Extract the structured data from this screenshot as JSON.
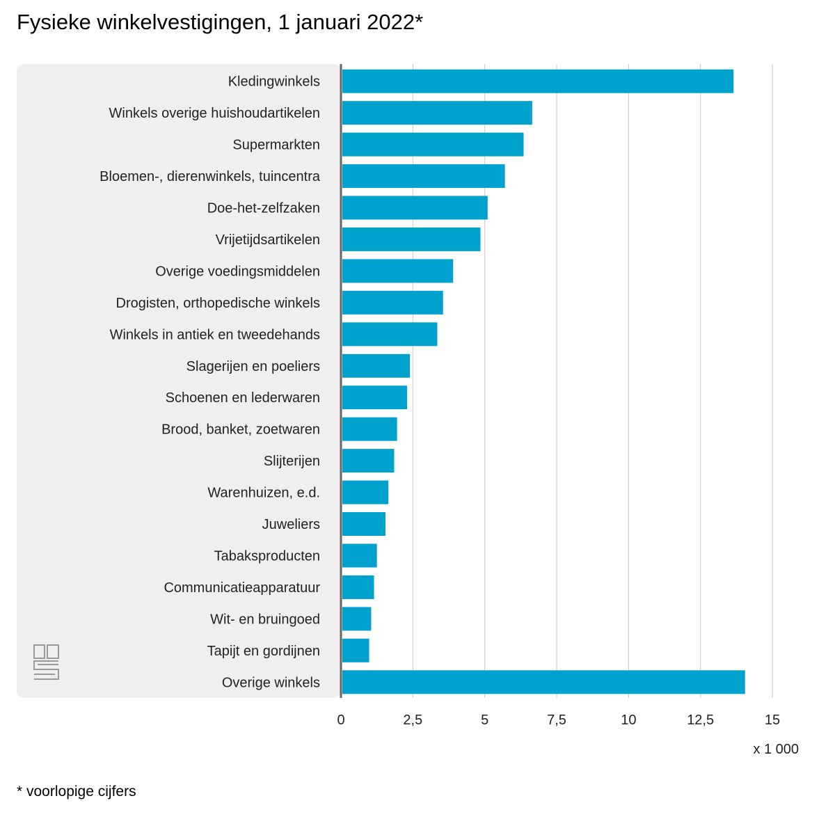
{
  "chart_data": {
    "type": "bar",
    "orientation": "horizontal",
    "title": "Fysieke winkelvestigingen, 1 januari 2022*",
    "unit_label": "x 1 000",
    "footnote": "* voorlopige cijfers",
    "xlim": [
      0,
      15
    ],
    "xticks": [
      0,
      2.5,
      5,
      7.5,
      10,
      12.5,
      15
    ],
    "xtick_labels": [
      "0",
      "2,5",
      "5",
      "7,5",
      "10",
      "12,5",
      "15"
    ],
    "categories": [
      "Kledingwinkels",
      "Winkels overige huishoudartikelen",
      "Supermarkten",
      "Bloemen-, dierenwinkels, tuincentra",
      "Doe-het-zelfzaken",
      "Vrijetijdsartikelen",
      "Overige voedingsmiddelen",
      "Drogisten, orthopedische winkels",
      "Winkels in antiek en tweedehands",
      "Slagerijen en poeliers",
      "Schoenen en lederwaren",
      "Brood, banket, zoetwaren",
      "Slijterijen",
      "Warenhuizen, e.d.",
      "Juweliers",
      "Tabaksproducten",
      "Communicatieapparatuur",
      "Wit- en bruingoed",
      "Tapijt en gordijnen",
      "Overige winkels"
    ],
    "values": [
      13.65,
      6.65,
      6.35,
      5.7,
      5.1,
      4.85,
      3.9,
      3.55,
      3.35,
      2.4,
      2.3,
      1.95,
      1.85,
      1.65,
      1.55,
      1.25,
      1.15,
      1.05,
      0.98,
      14.05
    ],
    "grid": true,
    "legend": "none"
  },
  "colors": {
    "bar": "#00a1cd",
    "panel": "#efefef",
    "grid": "#c8c8c8",
    "axis": "#666666"
  },
  "logo": {
    "icon": "cbs-logo-icon"
  }
}
